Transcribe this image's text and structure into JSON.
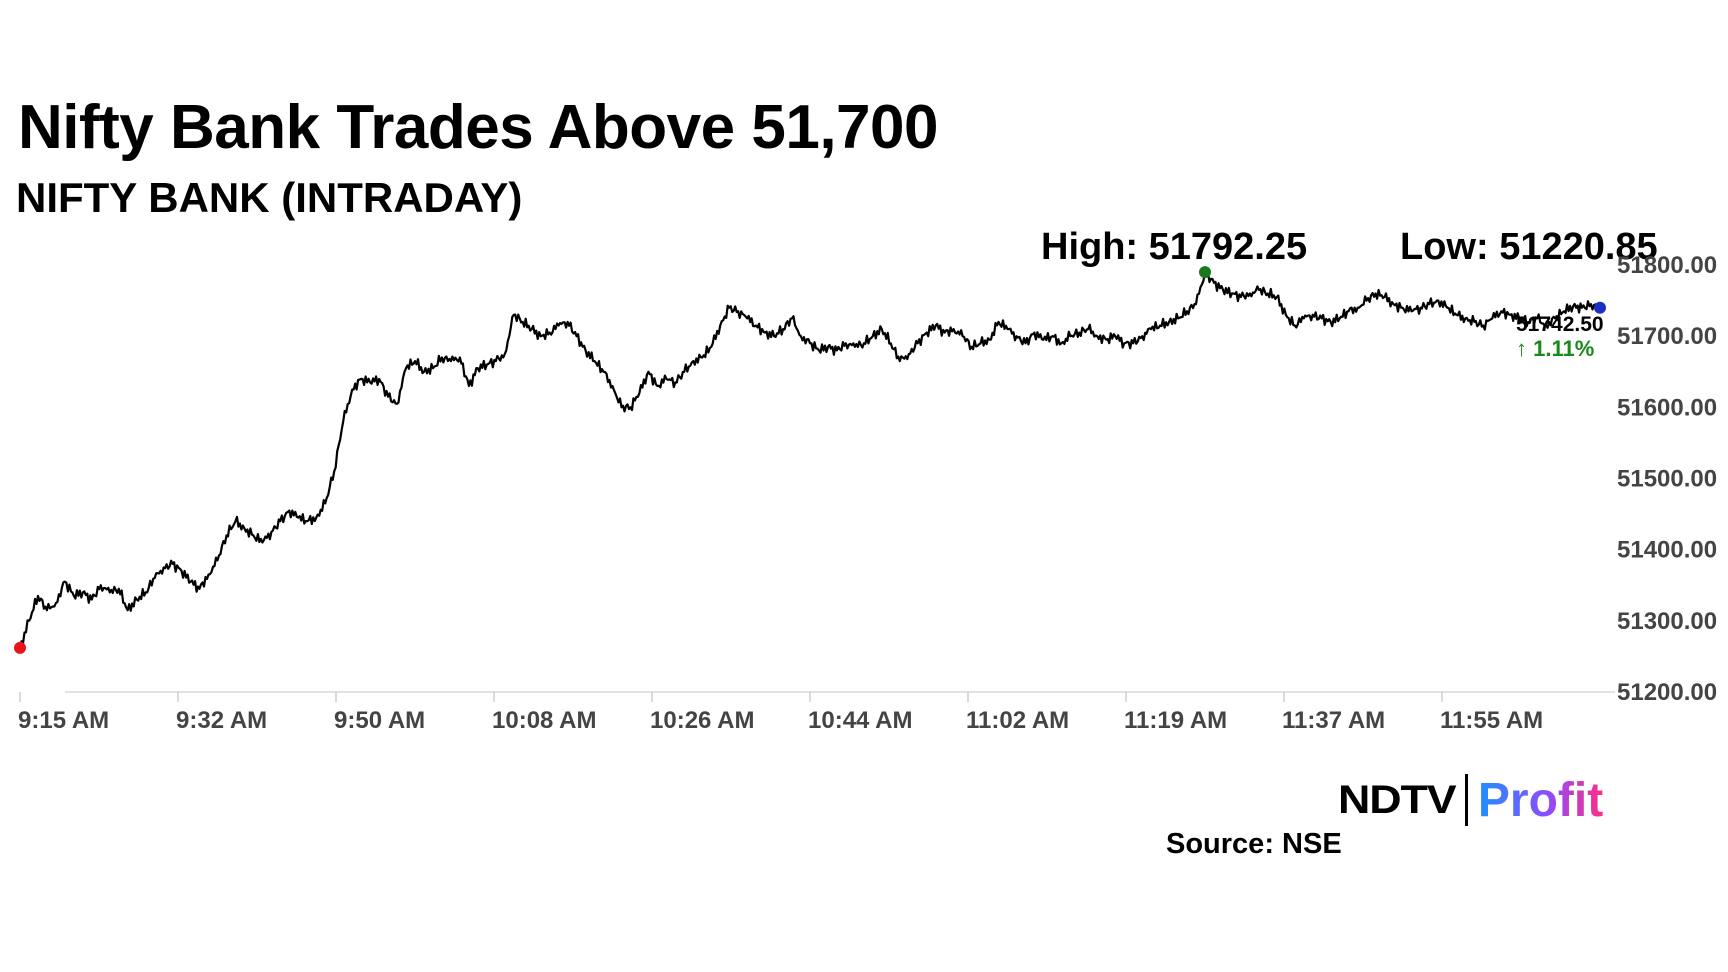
{
  "header": {
    "title": "Nifty Bank Trades Above 51,700",
    "subtitle": "NIFTY BANK (INTRADAY)"
  },
  "stats": {
    "high_label": "High: 51792.25",
    "low_label": "Low: 51220.85"
  },
  "footer": {
    "source": "Source: NSE",
    "logo_ndtv": "NDTV",
    "logo_profit": "Profit"
  },
  "colors": {
    "line": "#000000",
    "start_marker": "#e8141c",
    "high_marker": "#1a7a1a",
    "last_marker": "#1b2fc2",
    "change_up": "#1a8a1a",
    "axis_text": "#444444"
  },
  "chart_data": {
    "type": "line",
    "title": "NIFTY BANK (INTRADAY)",
    "xlabel": "",
    "ylabel": "",
    "x_ticks": [
      "9:15 AM",
      "9:32 AM",
      "9:50 AM",
      "10:08 AM",
      "10:26 AM",
      "10:44 AM",
      "11:02 AM",
      "11:19 AM",
      "11:37 AM",
      "11:55 AM"
    ],
    "y_ticks": [
      "51800.00",
      "51700.00",
      "51600.00",
      "51500.00",
      "51400.00",
      "51300.00",
      "51200.00"
    ],
    "ylim": [
      51200,
      51800
    ],
    "grid": false,
    "series": [
      {
        "values": [
          [
            0,
            51262
          ],
          [
            1,
            51300
          ],
          [
            2,
            51335
          ],
          [
            3,
            51315
          ],
          [
            4,
            51325
          ],
          [
            5,
            51355
          ],
          [
            6,
            51335
          ],
          [
            7,
            51340
          ],
          [
            8,
            51330
          ],
          [
            9,
            51350
          ],
          [
            10,
            51340
          ],
          [
            11,
            51345
          ],
          [
            12,
            51315
          ],
          [
            13,
            51330
          ],
          [
            14,
            51340
          ],
          [
            15,
            51360
          ],
          [
            16,
            51375
          ],
          [
            17,
            51380
          ],
          [
            18,
            51370
          ],
          [
            19,
            51355
          ],
          [
            20,
            51345
          ],
          [
            21,
            51365
          ],
          [
            22,
            51385
          ],
          [
            23,
            51420
          ],
          [
            24,
            51440
          ],
          [
            25,
            51430
          ],
          [
            26,
            51420
          ],
          [
            27,
            51410
          ],
          [
            28,
            51425
          ],
          [
            29,
            51440
          ],
          [
            30,
            51455
          ],
          [
            31,
            51445
          ],
          [
            32,
            51440
          ],
          [
            33,
            51445
          ],
          [
            34,
            51465
          ],
          [
            35,
            51510
          ],
          [
            36,
            51580
          ],
          [
            37,
            51625
          ],
          [
            38,
            51640
          ],
          [
            39,
            51635
          ],
          [
            40,
            51640
          ],
          [
            41,
            51615
          ],
          [
            42,
            51605
          ],
          [
            43,
            51655
          ],
          [
            44,
            51665
          ],
          [
            45,
            51650
          ],
          [
            46,
            51655
          ],
          [
            47,
            51670
          ],
          [
            48,
            51665
          ],
          [
            49,
            51670
          ],
          [
            50,
            51630
          ],
          [
            51,
            51655
          ],
          [
            52,
            51660
          ],
          [
            53,
            51665
          ],
          [
            54,
            51675
          ],
          [
            55,
            51730
          ],
          [
            56,
            51720
          ],
          [
            57,
            51710
          ],
          [
            58,
            51700
          ],
          [
            59,
            51705
          ],
          [
            60,
            51715
          ],
          [
            61,
            51720
          ],
          [
            62,
            51700
          ],
          [
            63,
            51680
          ],
          [
            64,
            51665
          ],
          [
            65,
            51650
          ],
          [
            66,
            51630
          ],
          [
            67,
            51600
          ],
          [
            68,
            51600
          ],
          [
            69,
            51620
          ],
          [
            70,
            51650
          ],
          [
            71,
            51630
          ],
          [
            72,
            51640
          ],
          [
            73,
            51635
          ],
          [
            74,
            51650
          ],
          [
            75,
            51665
          ],
          [
            76,
            51670
          ],
          [
            77,
            51685
          ],
          [
            78,
            51715
          ],
          [
            79,
            51740
          ],
          [
            80,
            51735
          ],
          [
            81,
            51725
          ],
          [
            82,
            51715
          ],
          [
            83,
            51705
          ],
          [
            84,
            51700
          ],
          [
            85,
            51710
          ],
          [
            86,
            51725
          ],
          [
            87,
            51700
          ],
          [
            88,
            51690
          ],
          [
            89,
            51680
          ],
          [
            90,
            51685
          ],
          [
            91,
            51680
          ],
          [
            92,
            51690
          ],
          [
            93,
            51685
          ],
          [
            94,
            51690
          ],
          [
            95,
            51700
          ],
          [
            96,
            51710
          ],
          [
            97,
            51690
          ],
          [
            98,
            51665
          ],
          [
            99,
            51675
          ],
          [
            100,
            51690
          ],
          [
            101,
            51705
          ],
          [
            102,
            51715
          ],
          [
            103,
            51705
          ],
          [
            104,
            51710
          ],
          [
            105,
            51700
          ],
          [
            106,
            51685
          ],
          [
            107,
            51690
          ],
          [
            108,
            51695
          ],
          [
            109,
            51720
          ],
          [
            110,
            51710
          ],
          [
            111,
            51700
          ],
          [
            112,
            51690
          ],
          [
            113,
            51705
          ],
          [
            114,
            51695
          ],
          [
            115,
            51700
          ],
          [
            116,
            51690
          ],
          [
            117,
            51700
          ],
          [
            118,
            51705
          ],
          [
            119,
            51710
          ],
          [
            120,
            51700
          ],
          [
            121,
            51695
          ],
          [
            122,
            51700
          ],
          [
            123,
            51690
          ],
          [
            124,
            51690
          ],
          [
            125,
            51700
          ],
          [
            126,
            51710
          ],
          [
            127,
            51715
          ],
          [
            128,
            51720
          ],
          [
            129,
            51725
          ],
          [
            130,
            51735
          ],
          [
            131,
            51745
          ],
          [
            132,
            51790
          ],
          [
            133,
            51775
          ],
          [
            134,
            51765
          ],
          [
            135,
            51760
          ],
          [
            136,
            51755
          ],
          [
            137,
            51760
          ],
          [
            138,
            51765
          ],
          [
            139,
            51760
          ],
          [
            140,
            51755
          ],
          [
            141,
            51730
          ],
          [
            142,
            51715
          ],
          [
            143,
            51725
          ],
          [
            144,
            51730
          ],
          [
            145,
            51725
          ],
          [
            146,
            51720
          ],
          [
            147,
            51725
          ],
          [
            148,
            51735
          ],
          [
            149,
            51740
          ],
          [
            150,
            51750
          ],
          [
            151,
            51760
          ],
          [
            152,
            51755
          ],
          [
            153,
            51745
          ],
          [
            154,
            51740
          ],
          [
            155,
            51735
          ],
          [
            156,
            51740
          ],
          [
            157,
            51745
          ],
          [
            158,
            51750
          ],
          [
            159,
            51740
          ],
          [
            160,
            51730
          ],
          [
            161,
            51725
          ],
          [
            162,
            51720
          ],
          [
            163,
            51715
          ],
          [
            164,
            51725
          ],
          [
            165,
            51735
          ],
          [
            166,
            51730
          ],
          [
            167,
            51725
          ],
          [
            168,
            51720
          ],
          [
            169,
            51725
          ],
          [
            170,
            51715
          ],
          [
            171,
            51725
          ],
          [
            172,
            51735
          ],
          [
            173,
            51742
          ],
          [
            174,
            51740
          ],
          [
            175,
            51745
          ],
          [
            176,
            51740
          ]
        ]
      }
    ],
    "annotations": [
      {
        "label": "51742.50",
        "change": "↑ 1.11%"
      }
    ]
  }
}
